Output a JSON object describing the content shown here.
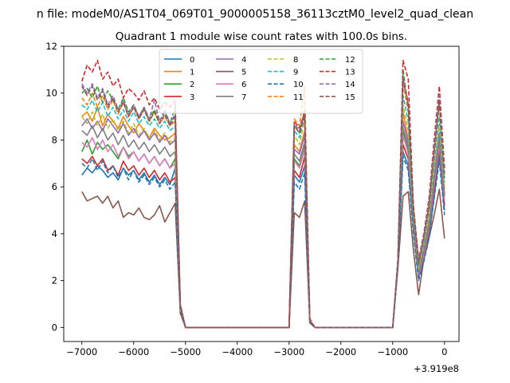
{
  "figure": {
    "suptitle": "n file: modeM0/AS1T04_069T01_9000005158_36113cztM0_level2_quad_clean",
    "offset_label": "+3.919e8"
  },
  "chart_data": {
    "type": "line",
    "title": "Quadrant 1 module wise count rates with 100.0s bins.",
    "xlabel": "",
    "ylabel": "",
    "xlim": [
      -7350,
      280
    ],
    "ylim": [
      -0.6,
      12
    ],
    "xticks": [
      -7000,
      -6000,
      -5000,
      -4000,
      -3000,
      -2000,
      -1000,
      0
    ],
    "xtick_labels": [
      "−7000",
      "−6000",
      "−5000",
      "−4000",
      "−3000",
      "−2000",
      "−1000",
      "0"
    ],
    "yticks": [
      0,
      2,
      4,
      6,
      8,
      10,
      12
    ],
    "ytick_labels": [
      "0",
      "2",
      "4",
      "6",
      "8",
      "10",
      "12"
    ],
    "grid": false,
    "legend": {
      "placement": "top-center",
      "columns": 4
    },
    "colors": [
      "#1f77b4",
      "#ff7f0e",
      "#2ca02c",
      "#d62728",
      "#9467bd",
      "#8c564b",
      "#e377c2",
      "#7f7f7f",
      "#bcbd22",
      "#17becf"
    ],
    "x": [
      -7000,
      -6900,
      -6800,
      -6700,
      -6600,
      -6500,
      -6400,
      -6300,
      -6200,
      -6100,
      -6000,
      -5900,
      -5800,
      -5700,
      -5600,
      -5500,
      -5400,
      -5300,
      -5200,
      -5100,
      -5000,
      -4900,
      -4800,
      -4700,
      -4600,
      -4500,
      -4400,
      -4300,
      -4200,
      -4100,
      -4000,
      -3900,
      -3800,
      -3700,
      -3600,
      -3500,
      -3400,
      -3300,
      -3200,
      -3100,
      -3000,
      -2900,
      -2800,
      -2700,
      -2600,
      -2500,
      -2400,
      -2300,
      -2200,
      -2100,
      -2000,
      -1900,
      -1800,
      -1700,
      -1600,
      -1500,
      -1400,
      -1300,
      -1200,
      -1100,
      -1000,
      -900,
      -800,
      -700,
      -600,
      -500,
      -400,
      -300,
      -200,
      -100,
      0
    ],
    "series": [
      {
        "name": "0",
        "dashed": false,
        "values": [
          6.5,
          6.8,
          6.6,
          6.9,
          6.7,
          6.4,
          6.6,
          6.3,
          6.8,
          6.5,
          6.7,
          6.3,
          6.6,
          6.2,
          6.5,
          6.1,
          6.4,
          6.1,
          6.8,
          0.9,
          0,
          0,
          0,
          0,
          0,
          0,
          0,
          0,
          0,
          0,
          0,
          0,
          0,
          0,
          0,
          0,
          0,
          0,
          0,
          0,
          0,
          6.5,
          6.2,
          6.9,
          0.2,
          0,
          0,
          0,
          0,
          0,
          0,
          0,
          0,
          0,
          0,
          0,
          0,
          0,
          0,
          0,
          0,
          2.6,
          7.5,
          6.9,
          4.2,
          2.1,
          2.9,
          3.9,
          5.6,
          7.4,
          5.0
        ]
      },
      {
        "name": "1",
        "dashed": false,
        "values": [
          9.0,
          9.2,
          8.8,
          9.4,
          8.6,
          9.1,
          8.8,
          8.5,
          9.0,
          8.6,
          8.3,
          8.7,
          8.4,
          8.1,
          8.5,
          8.2,
          8.0,
          8.1,
          8.3,
          0.8,
          0,
          0,
          0,
          0,
          0,
          0,
          0,
          0,
          0,
          0,
          0,
          0,
          0,
          0,
          0,
          0,
          0,
          0,
          0,
          0,
          0,
          7.8,
          7.5,
          8.4,
          0.3,
          0,
          0,
          0,
          0,
          0,
          0,
          0,
          0,
          0,
          0,
          0,
          0,
          0,
          0,
          0,
          0,
          2.6,
          9.2,
          8.0,
          4.6,
          2.4,
          3.4,
          4.6,
          6.6,
          8.1,
          5.9
        ]
      },
      {
        "name": "2",
        "dashed": false,
        "values": [
          7.5,
          8.0,
          7.4,
          7.9,
          7.6,
          7.8,
          7.5,
          7.2,
          7.7,
          7.3,
          7.5,
          7.1,
          7.4,
          7.0,
          7.3,
          6.9,
          7.2,
          6.8,
          7.2,
          0.8,
          0,
          0,
          0,
          0,
          0,
          0,
          0,
          0,
          0,
          0,
          0,
          0,
          0,
          0,
          0,
          0,
          0,
          0,
          0,
          0,
          0,
          7.2,
          6.9,
          7.7,
          0.3,
          0,
          0,
          0,
          0,
          0,
          0,
          0,
          0,
          0,
          0,
          0,
          0,
          0,
          0,
          0,
          0,
          2.6,
          8.4,
          7.6,
          4.4,
          2.3,
          3.1,
          4.3,
          6.2,
          8.0,
          5.6
        ]
      },
      {
        "name": "3",
        "dashed": false,
        "values": [
          7.2,
          7.0,
          7.3,
          6.9,
          7.2,
          6.7,
          6.9,
          6.5,
          7.1,
          6.7,
          6.9,
          6.5,
          6.8,
          6.4,
          6.7,
          6.3,
          6.6,
          6.2,
          6.4,
          0.8,
          0,
          0,
          0,
          0,
          0,
          0,
          0,
          0,
          0,
          0,
          0,
          0,
          0,
          0,
          0,
          0,
          0,
          0,
          0,
          0,
          0,
          6.7,
          6.4,
          7.3,
          0.2,
          0,
          0,
          0,
          0,
          0,
          0,
          0,
          0,
          0,
          0,
          0,
          0,
          0,
          0,
          0,
          0,
          2.6,
          7.8,
          7.2,
          4.3,
          2.2,
          3.0,
          4.1,
          5.9,
          7.7,
          5.2
        ]
      },
      {
        "name": "4",
        "dashed": false,
        "values": [
          8.6,
          8.9,
          8.5,
          8.8,
          8.4,
          8.9,
          8.6,
          8.3,
          8.7,
          8.2,
          8.5,
          8.1,
          8.4,
          8.0,
          8.3,
          7.9,
          8.2,
          7.8,
          8.0,
          0.8,
          0,
          0,
          0,
          0,
          0,
          0,
          0,
          0,
          0,
          0,
          0,
          0,
          0,
          0,
          0,
          0,
          0,
          0,
          0,
          0,
          0,
          7.6,
          7.4,
          8.2,
          0.3,
          0,
          0,
          0,
          0,
          0,
          0,
          0,
          0,
          0,
          0,
          0,
          0,
          0,
          0,
          0,
          0,
          2.6,
          8.8,
          7.9,
          4.5,
          2.3,
          3.3,
          4.4,
          6.4,
          8.3,
          5.7
        ]
      },
      {
        "name": "5",
        "dashed": false,
        "values": [
          5.8,
          5.4,
          5.5,
          5.6,
          5.3,
          5.6,
          5.1,
          5.4,
          4.7,
          4.9,
          4.8,
          5.1,
          4.7,
          4.6,
          4.8,
          5.2,
          4.5,
          4.9,
          5.3,
          0.6,
          0,
          0,
          0,
          0,
          0,
          0,
          0,
          0,
          0,
          0,
          0,
          0,
          0,
          0,
          0,
          0,
          0,
          0,
          0,
          0,
          0,
          4.9,
          4.7,
          5.4,
          0.2,
          0,
          0,
          0,
          0,
          0,
          0,
          0,
          0,
          0,
          0,
          0,
          0,
          0,
          0,
          0,
          0,
          2.5,
          5.6,
          5.8,
          3.3,
          1.4,
          2.9,
          3.8,
          4.8,
          5.9,
          3.8
        ]
      },
      {
        "name": "6",
        "dashed": false,
        "values": [
          7.9,
          7.7,
          8.1,
          7.6,
          8.0,
          7.5,
          7.8,
          7.3,
          7.7,
          7.2,
          7.5,
          7.1,
          7.4,
          7.0,
          7.3,
          6.9,
          7.2,
          6.8,
          7.0,
          0.8,
          0,
          0,
          0,
          0,
          0,
          0,
          0,
          0,
          0,
          0,
          0,
          0,
          0,
          0,
          0,
          0,
          0,
          0,
          0,
          0,
          0,
          7.1,
          6.8,
          7.6,
          0.3,
          0,
          0,
          0,
          0,
          0,
          0,
          0,
          0,
          0,
          0,
          0,
          0,
          0,
          0,
          0,
          0,
          2.6,
          8.2,
          7.4,
          4.3,
          2.2,
          3.1,
          4.2,
          6.1,
          7.8,
          5.4
        ]
      },
      {
        "name": "7",
        "dashed": false,
        "values": [
          8.4,
          8.2,
          8.6,
          8.1,
          8.5,
          8.0,
          8.3,
          7.8,
          8.2,
          7.7,
          8.0,
          7.6,
          7.9,
          7.5,
          7.8,
          7.4,
          7.7,
          7.3,
          7.5,
          0.8,
          0,
          0,
          0,
          0,
          0,
          0,
          0,
          0,
          0,
          0,
          0,
          0,
          0,
          0,
          0,
          0,
          0,
          0,
          0,
          0,
          0,
          7.4,
          7.1,
          7.9,
          0.3,
          0,
          0,
          0,
          0,
          0,
          0,
          0,
          0,
          0,
          0,
          0,
          0,
          0,
          0,
          0,
          0,
          2.6,
          8.5,
          7.7,
          4.4,
          2.3,
          3.2,
          4.3,
          6.3,
          8.0,
          5.6
        ]
      },
      {
        "name": "8",
        "dashed": true,
        "values": [
          9.0,
          8.7,
          9.2,
          8.6,
          9.1,
          8.5,
          8.9,
          8.4,
          8.8,
          8.3,
          8.7,
          8.2,
          8.5,
          8.1,
          8.4,
          8.0,
          8.3,
          7.9,
          8.1,
          0.8,
          0,
          0,
          0,
          0,
          0,
          0,
          0,
          0,
          0,
          0,
          0,
          0,
          0,
          0,
          0,
          0,
          0,
          0,
          0,
          0,
          0,
          8.2,
          7.8,
          8.9,
          0.3,
          0,
          0,
          0,
          0,
          0,
          0,
          0,
          0,
          0,
          0,
          0,
          0,
          0,
          0,
          0,
          0,
          2.7,
          9.5,
          8.4,
          4.7,
          2.5,
          3.5,
          4.7,
          6.8,
          8.7,
          6.0
        ]
      },
      {
        "name": "9",
        "dashed": true,
        "values": [
          9.5,
          9.3,
          9.7,
          9.2,
          9.6,
          9.0,
          9.4,
          8.9,
          9.3,
          8.8,
          9.2,
          8.7,
          9.0,
          8.6,
          8.9,
          8.5,
          8.8,
          8.4,
          8.6,
          0.9,
          0,
          0,
          0,
          0,
          0,
          0,
          0,
          0,
          0,
          0,
          0,
          0,
          0,
          0,
          0,
          0,
          0,
          0,
          0,
          0,
          0,
          8.4,
          8.1,
          9.1,
          0.3,
          0,
          0,
          0,
          0,
          0,
          0,
          0,
          0,
          0,
          0,
          0,
          0,
          0,
          0,
          0,
          0,
          2.7,
          9.9,
          8.8,
          4.9,
          2.6,
          3.6,
          4.9,
          7.0,
          9.0,
          6.2
        ]
      },
      {
        "name": "10",
        "dashed": true,
        "values": [
          7.0,
          6.8,
          7.2,
          6.7,
          7.1,
          6.6,
          6.9,
          6.4,
          6.8,
          6.3,
          6.7,
          6.2,
          6.5,
          6.1,
          6.4,
          6.0,
          6.3,
          5.9,
          6.2,
          0.7,
          0,
          0,
          0,
          0,
          0,
          0,
          0,
          0,
          0,
          0,
          0,
          0,
          0,
          0,
          0,
          0,
          0,
          0,
          0,
          0,
          0,
          6.2,
          5.9,
          6.6,
          0.2,
          0,
          0,
          0,
          0,
          0,
          0,
          0,
          0,
          0,
          0,
          0,
          0,
          0,
          0,
          0,
          0,
          2.6,
          7.3,
          6.7,
          4.0,
          2.0,
          2.8,
          3.8,
          5.5,
          7.1,
          4.8
        ]
      },
      {
        "name": "11",
        "dashed": true,
        "values": [
          9.8,
          9.5,
          10.0,
          9.4,
          9.9,
          9.3,
          9.7,
          9.1,
          9.6,
          9.0,
          9.4,
          8.9,
          9.3,
          8.8,
          9.2,
          8.7,
          9.0,
          8.6,
          8.8,
          0.9,
          0,
          0,
          0,
          0,
          0,
          0,
          0,
          0,
          0,
          0,
          0,
          0,
          0,
          0,
          0,
          0,
          0,
          0,
          0,
          0,
          0,
          8.9,
          8.6,
          10.3,
          0.4,
          0,
          0,
          0,
          0,
          0,
          0,
          0,
          0,
          0,
          0,
          0,
          0,
          0,
          0,
          0,
          0,
          2.8,
          10.4,
          9.2,
          5.1,
          2.7,
          3.8,
          5.1,
          7.4,
          9.5,
          6.6
        ]
      },
      {
        "name": "12",
        "dashed": true,
        "values": [
          10.0,
          10.2,
          9.8,
          10.3,
          9.6,
          10.1,
          9.7,
          9.3,
          9.8,
          9.2,
          9.5,
          9.0,
          9.4,
          8.9,
          9.3,
          8.8,
          9.2,
          8.7,
          9.4,
          0.9,
          0,
          0,
          0,
          0,
          0,
          0,
          0,
          0,
          0,
          0,
          0,
          0,
          0,
          0,
          0,
          0,
          0,
          0,
          0,
          0,
          0,
          8.6,
          8.3,
          9.3,
          0.3,
          0,
          0,
          0,
          0,
          0,
          0,
          0,
          0,
          0,
          0,
          0,
          0,
          0,
          0,
          0,
          0,
          2.8,
          11.0,
          9.4,
          5.0,
          2.8,
          3.9,
          5.2,
          7.6,
          9.6,
          6.4
        ]
      },
      {
        "name": "13",
        "dashed": true,
        "values": [
          10.5,
          11.2,
          10.9,
          11.4,
          10.6,
          10.9,
          10.3,
          10.6,
          9.8,
          10.2,
          10.0,
          9.7,
          10.1,
          9.5,
          9.8,
          9.3,
          9.6,
          9.4,
          9.7,
          1.0,
          0,
          0,
          0,
          0,
          0,
          0,
          0,
          0,
          0,
          0,
          0,
          0,
          0,
          0,
          0,
          0,
          0,
          0,
          0,
          0,
          0,
          8.8,
          8.5,
          9.2,
          0.3,
          0,
          0,
          0,
          0,
          0,
          0,
          0,
          0,
          0,
          0,
          0,
          0,
          0,
          0,
          0,
          0,
          2.9,
          11.4,
          10.6,
          5.2,
          2.9,
          4.0,
          5.5,
          8.0,
          10.3,
          6.8
        ]
      },
      {
        "name": "14",
        "dashed": true,
        "values": [
          10.4,
          10.0,
          10.4,
          9.8,
          10.2,
          9.5,
          9.9,
          9.3,
          9.7,
          9.1,
          9.5,
          9.0,
          9.4,
          8.9,
          9.7,
          8.8,
          9.3,
          8.7,
          9.1,
          0.9,
          0,
          0,
          0,
          0,
          0,
          0,
          0,
          0,
          0,
          0,
          0,
          0,
          0,
          0,
          0,
          0,
          0,
          0,
          0,
          0,
          0,
          8.7,
          8.4,
          9.1,
          0.3,
          0,
          0,
          0,
          0,
          0,
          0,
          0,
          0,
          0,
          0,
          0,
          0,
          0,
          0,
          0,
          0,
          2.8,
          10.7,
          9.6,
          5.1,
          2.8,
          3.9,
          5.3,
          7.7,
          9.9,
          6.5
        ]
      },
      {
        "name": "15",
        "dashed": true,
        "values": [
          10.3,
          9.9,
          10.3,
          9.7,
          10.1,
          9.4,
          9.8,
          9.2,
          9.6,
          9.0,
          9.4,
          8.9,
          9.3,
          8.8,
          9.2,
          8.7,
          9.1,
          8.6,
          9.0,
          0.9,
          0,
          0,
          0,
          0,
          0,
          0,
          0,
          0,
          0,
          0,
          0,
          0,
          0,
          0,
          0,
          0,
          0,
          0,
          0,
          0,
          0,
          8.6,
          8.3,
          9.0,
          0.3,
          0,
          0,
          0,
          0,
          0,
          0,
          0,
          0,
          0,
          0,
          0,
          0,
          0,
          0,
          0,
          0,
          2.8,
          10.6,
          9.5,
          5.0,
          2.7,
          3.8,
          5.2,
          7.5,
          9.7,
          6.4
        ]
      }
    ]
  }
}
